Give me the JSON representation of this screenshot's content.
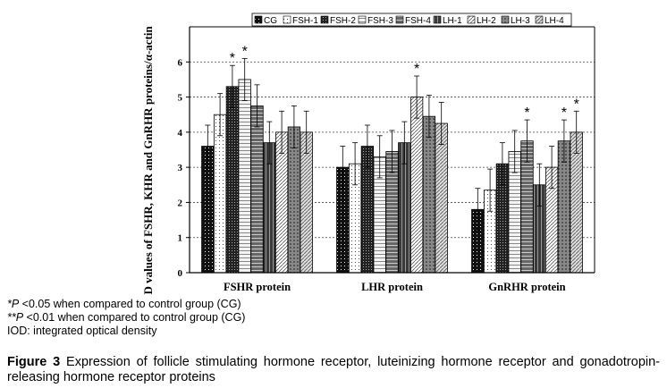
{
  "chart_data": {
    "type": "bar",
    "ylabel": "IOD values of FSHR, KHR and GnRHR proteins/α-actin",
    "ylim": [
      0,
      7
    ],
    "yticks": [
      "0",
      "1",
      "2",
      "3",
      "4",
      "5",
      "6"
    ],
    "grid": "dashed horizontal",
    "legend_position": "top",
    "categories": [
      "FSHR protein",
      "LHR protein",
      "GnRHR protein"
    ],
    "series": [
      {
        "name": "CG",
        "values": [
          3.6,
          3.0,
          1.8
        ],
        "errors": [
          0.6,
          0.6,
          0.6
        ],
        "stars": [
          "",
          "",
          ""
        ]
      },
      {
        "name": "FSH-1",
        "values": [
          4.5,
          3.1,
          2.35
        ],
        "errors": [
          0.6,
          0.6,
          0.6
        ],
        "stars": [
          "",
          "",
          ""
        ]
      },
      {
        "name": "FSH-2",
        "values": [
          5.3,
          3.6,
          3.1
        ],
        "errors": [
          0.6,
          0.6,
          0.6
        ],
        "stars": [
          "*",
          "",
          ""
        ]
      },
      {
        "name": "FSH-3",
        "values": [
          5.5,
          3.3,
          3.45
        ],
        "errors": [
          0.6,
          0.6,
          0.6
        ],
        "stars": [
          "*",
          "",
          ""
        ]
      },
      {
        "name": "FSH-4",
        "values": [
          4.75,
          3.45,
          3.75
        ],
        "errors": [
          0.6,
          0.6,
          0.6
        ],
        "stars": [
          "",
          "",
          "*"
        ]
      },
      {
        "name": "LH-1",
        "values": [
          3.7,
          3.7,
          2.5
        ],
        "errors": [
          0.6,
          0.6,
          0.6
        ],
        "stars": [
          "",
          "",
          ""
        ]
      },
      {
        "name": "LH-2",
        "values": [
          4.0,
          5.0,
          3.0
        ],
        "errors": [
          0.6,
          0.6,
          0.6
        ],
        "stars": [
          "",
          "*",
          ""
        ]
      },
      {
        "name": "LH-3",
        "values": [
          4.15,
          4.45,
          3.75
        ],
        "errors": [
          0.6,
          0.6,
          0.6
        ],
        "stars": [
          "",
          "",
          "*"
        ]
      },
      {
        "name": "LH-4",
        "values": [
          4.0,
          4.25,
          4.0
        ],
        "errors": [
          0.6,
          0.6,
          0.6
        ],
        "stars": [
          "",
          "",
          "*"
        ]
      }
    ]
  },
  "notes": {
    "note1_marker": "*P",
    "note1_text": " <0.05 when compared to control group (CG)",
    "note2_marker": "**P",
    "note2_text": " <0.01 when compared to control group (CG)",
    "note3": "IOD: integrated optical density"
  },
  "caption": {
    "label": "Figure 3",
    "text": " Expression of follicle stimulating hormone receptor, luteinizing hormone receptor and gonadotropin-releasing hormone receptor proteins"
  },
  "colors": {
    "CG": "#111111",
    "FSH-1": "#ffffff",
    "FSH-2": "#1a1a1a",
    "FSH-3": "#f2f2f2",
    "FSH-4": "#6a6a6a",
    "LH-1": "#3a3a3a",
    "LH-2": "#dddddd",
    "LH-3": "#8a8a8a",
    "LH-4": "#c4c4c4"
  }
}
